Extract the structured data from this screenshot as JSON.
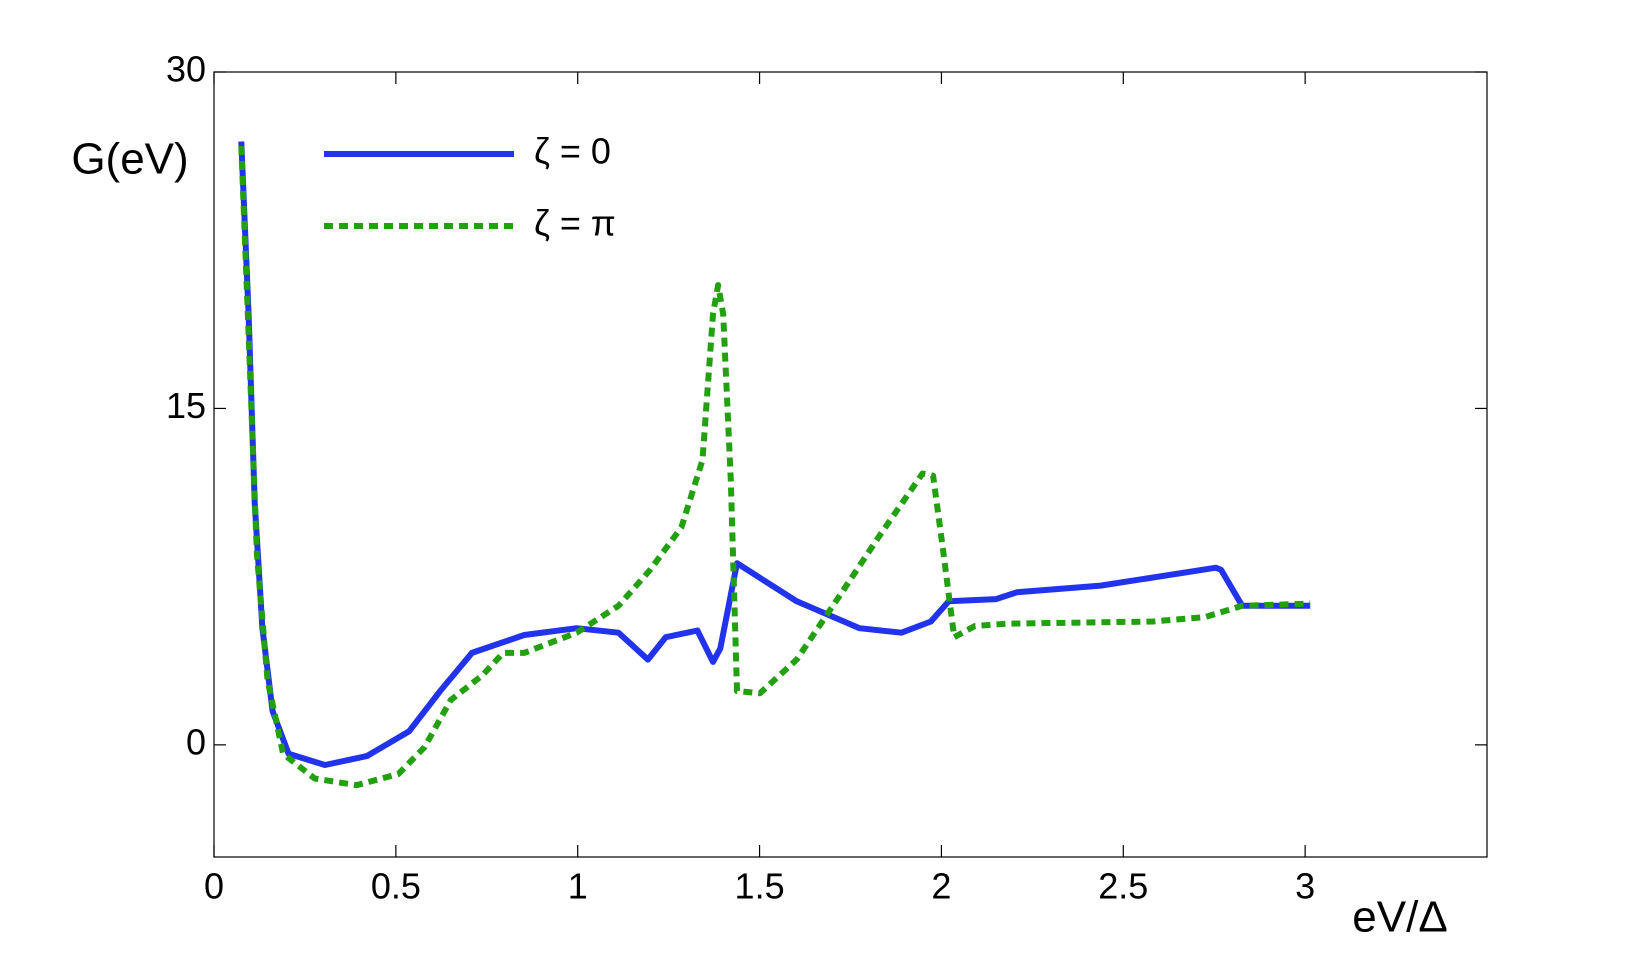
{
  "chart_data": {
    "type": "line",
    "x_label": "eV/Δ",
    "y_label": "G(eV)",
    "xlim": [
      0,
      3.5
    ],
    "xticks": [
      0,
      0.5,
      1,
      1.5,
      2,
      2.5,
      3
    ],
    "ylim": [
      -5,
      30
    ],
    "yticks": [
      0,
      15,
      30
    ],
    "legend": "upper left",
    "series": [
      {
        "name": "ζ = 0",
        "color": "#2233ee",
        "dashed": false,
        "x": [
          0.075,
          0.095,
          0.112,
          0.133,
          0.161,
          0.205,
          0.305,
          0.42,
          0.536,
          0.622,
          0.709,
          0.853,
          0.997,
          1.112,
          1.193,
          1.242,
          1.329,
          1.372,
          1.392,
          1.438,
          1.602,
          1.775,
          1.89,
          1.971,
          2.02,
          2.15,
          2.207,
          2.438,
          2.755,
          2.769,
          2.827,
          3.014
        ],
        "values": [
          26.9,
          19.2,
          10.8,
          5.2,
          1.5,
          -0.4,
          -0.9,
          -0.5,
          0.6,
          2.4,
          4.1,
          4.9,
          5.2,
          5.0,
          3.8,
          4.8,
          5.1,
          3.7,
          4.3,
          8.1,
          6.4,
          5.2,
          5.0,
          5.5,
          6.4,
          6.5,
          6.8,
          7.1,
          7.9,
          7.8,
          6.2,
          6.2
        ]
      },
      {
        "name": "ζ = π",
        "color": "#22a010",
        "dashed": true,
        "x": [
          0.075,
          0.095,
          0.118,
          0.147,
          0.19,
          0.277,
          0.392,
          0.507,
          0.579,
          0.651,
          0.738,
          0.795,
          0.853,
          0.997,
          1.112,
          1.199,
          1.285,
          1.343,
          1.372,
          1.386,
          1.4,
          1.421,
          1.438,
          1.501,
          1.602,
          1.718,
          1.833,
          1.948,
          1.977,
          2.006,
          2.035,
          2.092,
          2.179,
          2.582,
          2.726,
          2.827,
          3.014
        ],
        "values": [
          26.7,
          18.3,
          8.5,
          2.9,
          -0.4,
          -1.5,
          -1.8,
          -1.3,
          -0.1,
          2.0,
          3.1,
          4.1,
          4.1,
          5.0,
          6.2,
          7.8,
          9.7,
          12.7,
          19.2,
          20.5,
          19.2,
          11.8,
          2.4,
          2.3,
          3.8,
          6.6,
          9.4,
          12.1,
          12.0,
          8.5,
          4.8,
          5.3,
          5.4,
          5.5,
          5.7,
          6.2,
          6.3
        ]
      }
    ]
  }
}
